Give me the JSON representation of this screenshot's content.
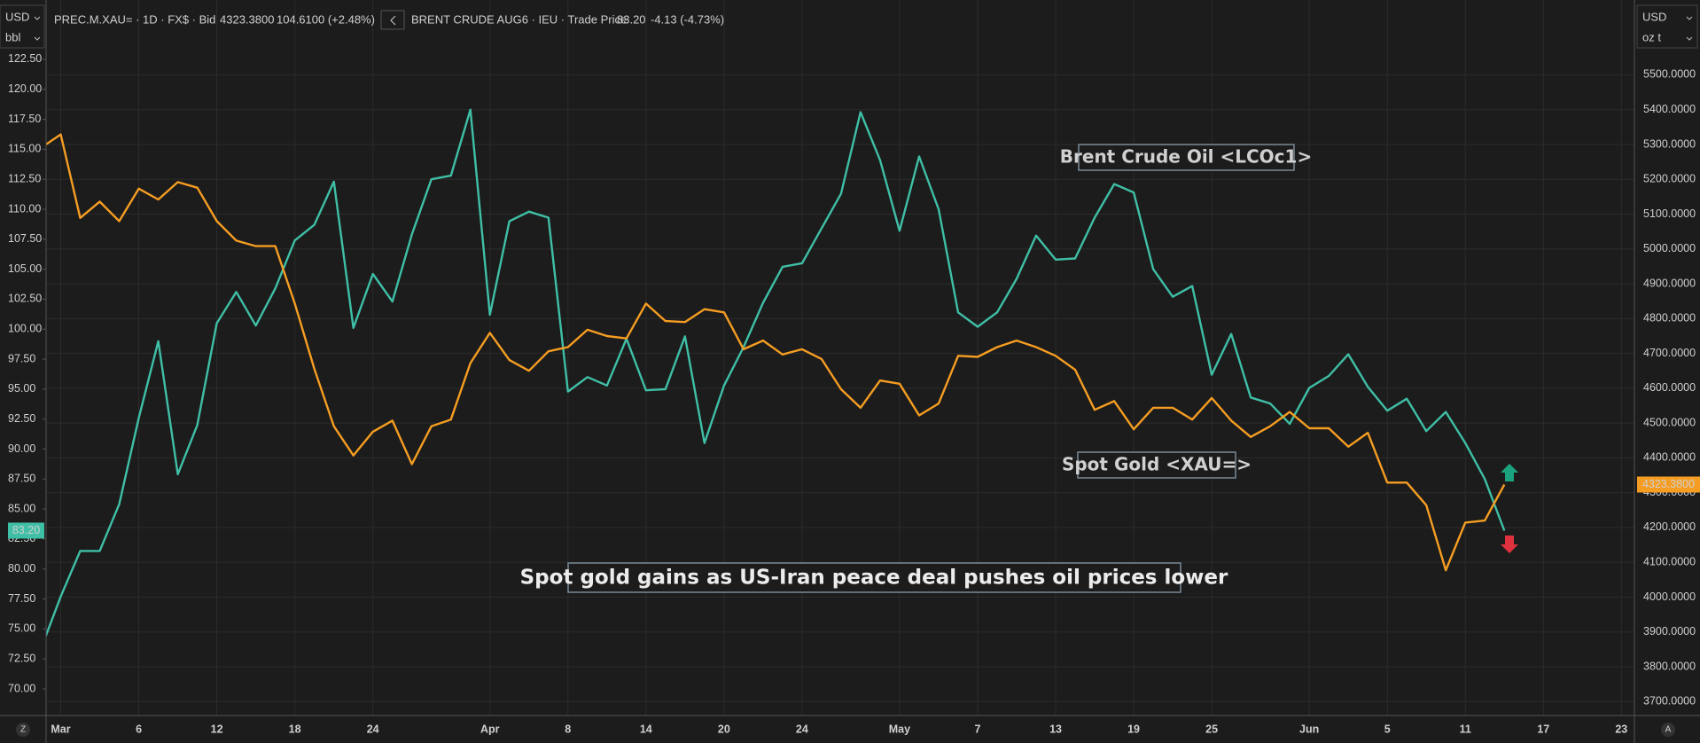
{
  "toolbar": {
    "left_currency": "USD",
    "left_unit": "bbl",
    "right_currency": "USD",
    "right_unit": "oz t",
    "gold_ric": "PREC.M.XAU= · 1D · FX$ · Bid",
    "gold_last": "4323.3800",
    "gold_change": "104.6100 (+2.48%)",
    "oil_ric": "BRENT CRUDE AUG6 · IEU · Trade Price",
    "oil_last": "83.20",
    "oil_change": "-4.13 (-4.73%)",
    "left_button": "Z",
    "right_button": "A"
  },
  "chart_data": {
    "type": "line",
    "title": "Spot gold gains as US-Iran peace deal pushes oil prices lower",
    "categories": [
      null,
      "Mar",
      null,
      null,
      null,
      "6",
      null,
      null,
      null,
      "12",
      null,
      null,
      null,
      "18",
      null,
      null,
      null,
      "24",
      null,
      null,
      null,
      null,
      null,
      "Apr",
      null,
      null,
      null,
      "8",
      null,
      null,
      null,
      "14",
      null,
      null,
      null,
      "20",
      null,
      null,
      null,
      "24",
      null,
      null,
      null,
      null,
      "May",
      null,
      null,
      null,
      "7",
      null,
      null,
      null,
      "13",
      null,
      null,
      null,
      "19",
      null,
      null,
      null,
      "25",
      null,
      null,
      null,
      null,
      "Jun",
      null,
      null,
      null,
      "5",
      null,
      null,
      null,
      "11",
      null,
      null,
      null,
      "17",
      null,
      null,
      null,
      "23"
    ],
    "series": [
      {
        "name": "Brent Crude Oil <LCOc1>",
        "color": "#3fbfa6",
        "axis": "y",
        "values": [
          73.4,
          77.7,
          81.5,
          81.5,
          85.4,
          92.6,
          99.0,
          87.9,
          92.0,
          100.5,
          103.1,
          100.3,
          103.4,
          107.4,
          108.7,
          112.3,
          100.1,
          104.6,
          102.3,
          107.9,
          112.5,
          112.8,
          118.3,
          101.2,
          109.0,
          109.8,
          109.3,
          94.8,
          96.0,
          95.3,
          99.2,
          94.9,
          95.0,
          99.4,
          90.5,
          95.3,
          98.5,
          102.2,
          105.2,
          105.5,
          108.4,
          111.3,
          118.1,
          114.1,
          108.2,
          114.4,
          110.0,
          101.4,
          100.2,
          101.4,
          104.2,
          107.8,
          105.8,
          105.9,
          109.3,
          112.1,
          111.4,
          105.0,
          102.7,
          103.6,
          96.2,
          99.6,
          94.3,
          93.8,
          92.1,
          95.1,
          96.1,
          97.9,
          95.2,
          93.2,
          94.2,
          91.5,
          93.1,
          90.5,
          87.5,
          83.2,
          null,
          null,
          null,
          null,
          null,
          null
        ],
        "value_labels": [
          null,
          null,
          null,
          null,
          null,
          null,
          null,
          null,
          null,
          null,
          null,
          null,
          null,
          null,
          null,
          null,
          null,
          null,
          null,
          null,
          null,
          null,
          null,
          null,
          null,
          null,
          null,
          null,
          null,
          null,
          null,
          null,
          null,
          null,
          null,
          null,
          null,
          null,
          null,
          null,
          null,
          null,
          null,
          null,
          null,
          null,
          null,
          null,
          null,
          null,
          null,
          null,
          null,
          null,
          null,
          null,
          null,
          null,
          null,
          null,
          null,
          null,
          null,
          null,
          null,
          null,
          null,
          null,
          null,
          null,
          null,
          null,
          null,
          null,
          null,
          "83.20",
          null,
          null,
          null,
          null,
          null,
          null
        ]
      },
      {
        "name": "Spot Gold <XAU=>",
        "color": "#f59d22",
        "axis": "y2",
        "values": [
          5291,
          5329,
          5089,
          5136,
          5080,
          5173,
          5142,
          5192,
          5176,
          5080,
          5024,
          5008,
          5008,
          4843,
          4656,
          4491,
          4407,
          4475,
          4507,
          4382,
          4491,
          4510,
          4672,
          4759,
          4681,
          4650,
          4706,
          4718,
          4768,
          4750,
          4743,
          4843,
          4793,
          4790,
          4827,
          4818,
          4712,
          4737,
          4697,
          4712,
          4684,
          4597,
          4544,
          4622,
          4613,
          4522,
          4556,
          4693,
          4690,
          4718,
          4737,
          4718,
          4693,
          4653,
          4538,
          4563,
          4482,
          4544,
          4544,
          4510,
          4572,
          4507,
          4460,
          4491,
          4532,
          4485,
          4485,
          4432,
          4472,
          4329,
          4329,
          4264,
          4077,
          4214,
          4220,
          4323.38,
          null,
          null,
          null,
          null,
          null,
          null
        ],
        "value_labels": [
          null,
          null,
          null,
          null,
          null,
          null,
          null,
          null,
          null,
          null,
          null,
          null,
          null,
          null,
          null,
          null,
          null,
          null,
          null,
          null,
          null,
          null,
          null,
          null,
          null,
          null,
          null,
          null,
          null,
          null,
          null,
          null,
          null,
          null,
          null,
          null,
          null,
          null,
          null,
          null,
          null,
          null,
          null,
          null,
          null,
          null,
          null,
          null,
          null,
          null,
          null,
          null,
          null,
          null,
          null,
          null,
          null,
          null,
          null,
          null,
          null,
          null,
          null,
          null,
          null,
          null,
          null,
          null,
          null,
          null,
          null,
          null,
          null,
          null,
          null,
          "4323.3800",
          null,
          null,
          null,
          null,
          null,
          null
        ]
      }
    ],
    "ylim": [
      67.78,
      127.45
    ],
    "yticks": [
      {
        "value": 70,
        "label": "70.00"
      },
      {
        "value": 72.5,
        "label": "72.50"
      },
      {
        "value": 75,
        "label": "75.00"
      },
      {
        "value": 77.5,
        "label": "77.50"
      },
      {
        "value": 80,
        "label": "80.00"
      },
      {
        "value": 82.5,
        "label": "82.50"
      },
      {
        "value": 85,
        "label": "85.00"
      },
      {
        "value": 87.5,
        "label": "87.50"
      },
      {
        "value": 90,
        "label": "90.00"
      },
      {
        "value": 92.5,
        "label": "92.50"
      },
      {
        "value": 95,
        "label": "95.00"
      },
      {
        "value": 97.5,
        "label": "97.50"
      },
      {
        "value": 100,
        "label": "100.00"
      },
      {
        "value": 102.5,
        "label": "102.50"
      },
      {
        "value": 105,
        "label": "105.00"
      },
      {
        "value": 107.5,
        "label": "107.50"
      },
      {
        "value": 110,
        "label": "110.00"
      },
      {
        "value": 112.5,
        "label": "112.50"
      },
      {
        "value": 115,
        "label": "115.00"
      },
      {
        "value": 117.5,
        "label": "117.50"
      },
      {
        "value": 120,
        "label": "120.00"
      },
      {
        "value": 122.5,
        "label": "122.50"
      }
    ],
    "y2lim": [
      3660,
      5715
    ],
    "y2ticks": [
      {
        "value": 3700,
        "label": "3700.0000"
      },
      {
        "value": 3800,
        "label": "3800.0000"
      },
      {
        "value": 3900,
        "label": "3900.0000"
      },
      {
        "value": 4000,
        "label": "4000.0000"
      },
      {
        "value": 4100,
        "label": "4100.0000"
      },
      {
        "value": 4200,
        "label": "4200.0000"
      },
      {
        "value": 4300,
        "label": "4300.0000"
      },
      {
        "value": 4400,
        "label": "4400.0000"
      },
      {
        "value": 4500,
        "label": "4500.0000"
      },
      {
        "value": 4600,
        "label": "4600.0000"
      },
      {
        "value": 4700,
        "label": "4700.0000"
      },
      {
        "value": 4800,
        "label": "4800.0000"
      },
      {
        "value": 4900,
        "label": "4900.0000"
      },
      {
        "value": 5000,
        "label": "5000.0000"
      },
      {
        "value": 5100,
        "label": "5100.0000"
      },
      {
        "value": 5200,
        "label": "5200.0000"
      },
      {
        "value": 5300,
        "label": "5300.0000"
      },
      {
        "value": 5400,
        "label": "5400.0000"
      },
      {
        "value": 5500,
        "label": "5500.0000"
      }
    ],
    "grid": true
  }
}
